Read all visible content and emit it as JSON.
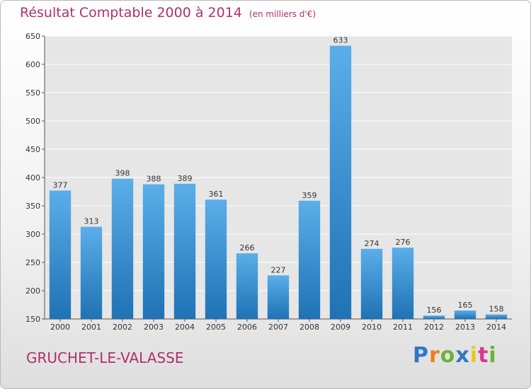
{
  "title": "Résultat Comptable 2000 à 2014",
  "unit": "(en milliers d'€)",
  "city": "GRUCHET-LE-VALASSE",
  "logo": {
    "letters": [
      "P",
      "r",
      "o",
      "x",
      "i",
      "t",
      "i"
    ],
    "colors": [
      "#2f78c5",
      "#f07d1a",
      "#6bb33b",
      "#2f78c5",
      "#e9c81c",
      "#d23b8a",
      "#6bb33b"
    ]
  },
  "chart_data": {
    "type": "bar",
    "categories": [
      "2000",
      "2001",
      "2002",
      "2003",
      "2004",
      "2005",
      "2006",
      "2007",
      "2008",
      "2009",
      "2010",
      "2011",
      "2012",
      "2013",
      "2014"
    ],
    "values": [
      377,
      313,
      398,
      388,
      389,
      361,
      266,
      227,
      359,
      633,
      274,
      276,
      156,
      165,
      158
    ],
    "ylim": [
      150,
      650
    ],
    "yticks": [
      150,
      200,
      250,
      300,
      350,
      400,
      450,
      500,
      550,
      600,
      650
    ],
    "grid": true,
    "bar_color_top": "#5aaee9",
    "bar_color_bottom": "#1f72b4"
  }
}
